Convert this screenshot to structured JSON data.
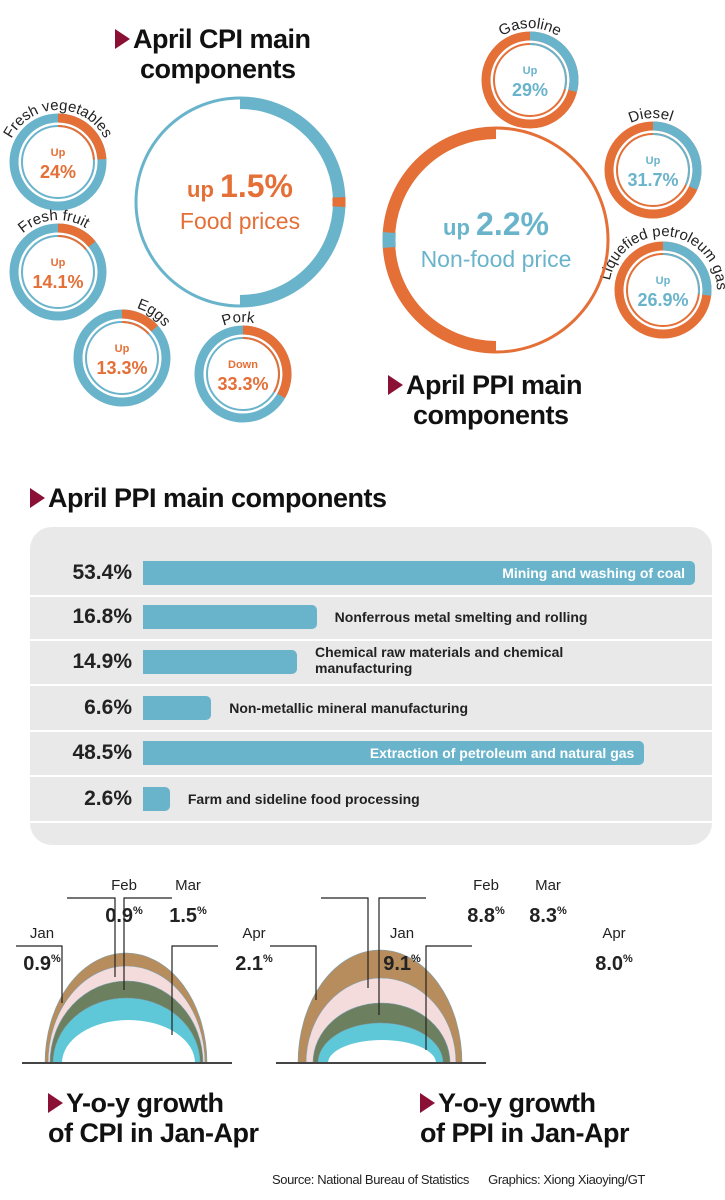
{
  "colors": {
    "blue": "#6ab4cb",
    "orange": "#e46f37",
    "marker": "#8b1035",
    "jan": "#b88d5d",
    "feb": "#f4dcdc",
    "mar": "#6c7f5f",
    "apr": "#5fc8d8"
  },
  "cpi_section": {
    "title_line1": "April CPI main",
    "title_line2": "components",
    "main": {
      "prefix": "up",
      "value": "1.5%",
      "label": "Food prices",
      "pct": 1.5
    },
    "items": [
      {
        "name": "Fresh vegetables",
        "direction": "Up",
        "value": "24%",
        "pct": 24
      },
      {
        "name": "Fresh fruit",
        "direction": "Up",
        "value": "14.1%",
        "pct": 14.1
      },
      {
        "name": "Eggs",
        "direction": "Up",
        "value": "13.3%",
        "pct": 13.3
      },
      {
        "name": "Pork",
        "direction": "Down",
        "value": "33.3%",
        "pct": 33.3
      }
    ]
  },
  "ppi_ring_section": {
    "title_line1": "April PPI main",
    "title_line2": "components",
    "main": {
      "prefix": "up",
      "value": "2.2%",
      "label": "Non-food price",
      "pct": 2.2
    },
    "items": [
      {
        "name": "Gasoline",
        "direction": "Up",
        "value": "29%",
        "pct": 29
      },
      {
        "name": "Diesel",
        "direction": "Up",
        "value": "31.7%",
        "pct": 31.7
      },
      {
        "name": "Liquefied petroleum gas",
        "direction": "Up",
        "value": "26.9%",
        "pct": 26.9
      }
    ]
  },
  "chart_data": [
    {
      "type": "bar",
      "title": "April PPI main components",
      "categories": [
        "Mining and washing of coal",
        "Nonferrous metal smelting and rolling",
        "Chemical raw materials and chemical manufacturing",
        "Non-metallic mineral manufacturing",
        "Extraction of petroleum and natural gas",
        "Farm and sideline food processing"
      ],
      "values": [
        53.4,
        16.8,
        14.9,
        6.6,
        48.5,
        2.6
      ],
      "value_labels": [
        "53.4%",
        "16.8%",
        "14.9%",
        "6.6%",
        "48.5%",
        "2.6%"
      ]
    },
    {
      "type": "area",
      "title_line1": "Y-o-y growth",
      "title_line2": "of CPI in Jan-Apr",
      "categories": [
        "Jan",
        "Feb",
        "Mar",
        "Apr"
      ],
      "values": [
        0.9,
        0.9,
        1.5,
        2.1
      ],
      "value_labels": [
        "0.9",
        "0.9",
        "1.5",
        "2.1"
      ],
      "unit": "%"
    },
    {
      "type": "area",
      "title_line1": "Y-o-y growth",
      "title_line2": "of PPI in Jan-Apr",
      "categories": [
        "Jan",
        "Feb",
        "Mar",
        "Apr"
      ],
      "values": [
        9.1,
        8.8,
        8.3,
        8.0
      ],
      "value_labels": [
        "9.1",
        "8.8",
        "8.3",
        "8.0"
      ],
      "unit": "%"
    }
  ],
  "footer": {
    "source": "Source: National Bureau of Statistics",
    "graphics": "Graphics: Xiong Xiaoying/GT"
  }
}
